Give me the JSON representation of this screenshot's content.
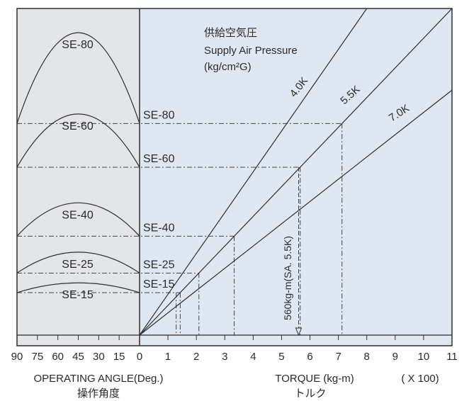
{
  "colors": {
    "left_panel_bg": "#e3e5e8",
    "right_panel_bg": "#dfe8f2",
    "line": "#2f2f2f",
    "text": "#2a2a2a"
  },
  "titles": {
    "jp": "供給空気圧",
    "en": "Supply Air Pressure",
    "unit": "(kg/cm²G)"
  },
  "left_axis": {
    "ticks": [
      "90",
      "75",
      "60",
      "45",
      "30",
      "15",
      "0"
    ],
    "label": "OPERATING ANGLE(Deg.)",
    "label_jp": "操作角度"
  },
  "right_axis": {
    "ticks": [
      "0",
      "1",
      "2",
      "3",
      "4",
      "5",
      "6",
      "7",
      "8",
      "9",
      "10",
      "11"
    ],
    "label": "TORQUE (kg-m)",
    "label_jp": "トルク",
    "multiplier": "( X 100)"
  },
  "annotation": "560kg-m(SA. 5.5K)",
  "chart_data": {
    "type": "line",
    "title": "供給空気圧 Supply Air Pressure (kg/cm²G)",
    "x_unit": "TORQUE (kg-m) ( X 100)",
    "xlim": [
      0,
      11
    ],
    "pressure_lines": [
      {
        "name": "4.0K",
        "x": [
          0,
          8
        ],
        "y": [
          0,
          1
        ]
      },
      {
        "name": "5.5K",
        "x": [
          0,
          11
        ],
        "y": [
          0,
          1
        ]
      },
      {
        "name": "7.0K",
        "x": [
          0,
          11
        ],
        "y": [
          0,
          0.75
        ]
      }
    ],
    "models": [
      {
        "name": "SE-80",
        "level": 0.648,
        "arc_peak": 0.926
      },
      {
        "name": "SE-60",
        "level": 0.514,
        "arc_peak": 0.677
      },
      {
        "name": "SE-40",
        "level": 0.303,
        "arc_peak": 0.405
      },
      {
        "name": "SE-25",
        "level": 0.19,
        "arc_peak": 0.254
      },
      {
        "name": "SE-15",
        "level": 0.13,
        "arc_peak": 0.16
      }
    ],
    "operating_angle_axis": {
      "ticks": [
        90,
        75,
        60,
        45,
        30,
        15,
        0
      ],
      "unit": "Deg."
    }
  }
}
